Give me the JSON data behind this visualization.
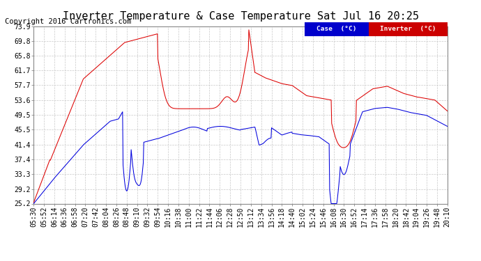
{
  "title": "Inverter Temperature & Case Temperature Sat Jul 16 20:25",
  "copyright": "Copyright 2016 Cartronics.com",
  "yticks": [
    25.2,
    29.2,
    33.3,
    37.4,
    41.4,
    45.5,
    49.5,
    53.6,
    57.7,
    61.7,
    65.8,
    69.8,
    73.9
  ],
  "xtick_labels": [
    "05:30",
    "05:52",
    "06:14",
    "06:36",
    "06:58",
    "07:20",
    "07:42",
    "08:04",
    "08:26",
    "08:48",
    "09:10",
    "09:32",
    "09:54",
    "10:16",
    "10:38",
    "11:00",
    "11:22",
    "11:44",
    "12:06",
    "12:28",
    "12:50",
    "13:12",
    "13:34",
    "13:56",
    "14:18",
    "14:40",
    "15:02",
    "15:24",
    "15:46",
    "16:08",
    "16:30",
    "16:52",
    "17:14",
    "17:36",
    "17:58",
    "18:20",
    "18:42",
    "19:04",
    "19:26",
    "19:48",
    "20:10"
  ],
  "ymin": 25.2,
  "ymax": 73.9,
  "bg_color": "#ffffff",
  "grid_color": "#c8c8c8",
  "case_color": "#0000dd",
  "inverter_color": "#dd0000",
  "legend_case_bg": "#0000cc",
  "legend_inv_bg": "#cc0000",
  "title_fontsize": 11,
  "tick_fontsize": 7,
  "copyright_fontsize": 7.5
}
